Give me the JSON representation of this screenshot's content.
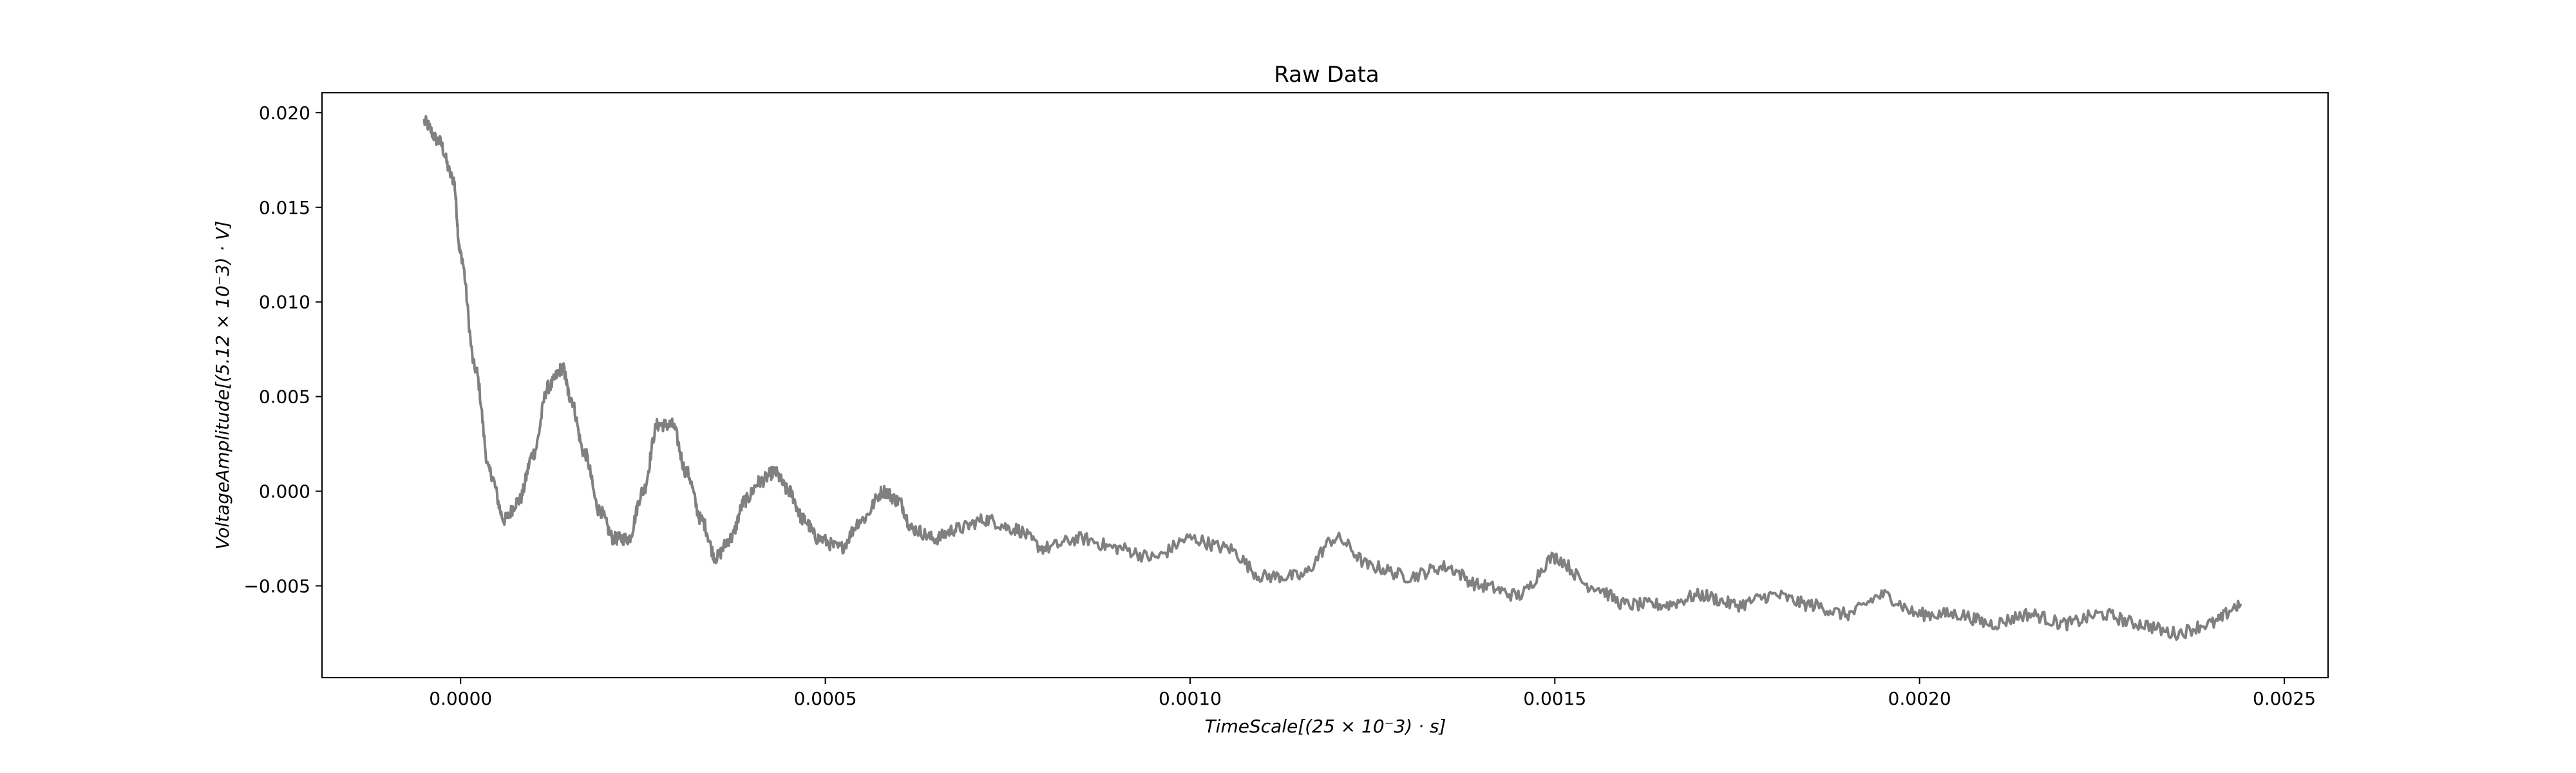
{
  "chart_data": {
    "type": "line",
    "title": "Raw Data",
    "xlabel": "TimeScale[(25 × 10⁻3) · s]",
    "ylabel": "VoltageAmplitude[(5.12 × 10⁻3) · V]",
    "xlim": [
      -0.00019,
      0.00256
    ],
    "ylim": [
      -0.00985,
      0.02105
    ],
    "xticks": [
      0.0,
      0.0005,
      0.001,
      0.0015,
      0.002,
      0.0025
    ],
    "xtick_labels": [
      "0.0000",
      "0.0005",
      "0.0010",
      "0.0015",
      "0.0020",
      "0.0025"
    ],
    "yticks": [
      -0.005,
      0.0,
      0.005,
      0.01,
      0.015,
      0.02
    ],
    "ytick_labels": [
      "−0.005",
      "0.000",
      "0.005",
      "0.010",
      "0.015",
      "0.020"
    ],
    "grid": false,
    "series": [
      {
        "color": "#808080",
        "x": [
          -5e-05,
          -3e-05,
          -1e-05,
          0.0,
          2e-05,
          4e-05,
          6e-05,
          8e-05,
          0.0001,
          0.00012,
          0.00014,
          0.00015,
          0.00017,
          0.00019,
          0.00021,
          0.00023,
          0.00025,
          0.00027,
          0.00029,
          0.00031,
          0.00033,
          0.00035,
          0.00037,
          0.00039,
          0.00041,
          0.00043,
          0.00045,
          0.00047,
          0.00049,
          0.00052,
          0.00055,
          0.00058,
          0.0006,
          0.00062,
          0.00065,
          0.00068,
          0.00072,
          0.00076,
          0.0008,
          0.00085,
          0.0009,
          0.00095,
          0.001,
          0.00105,
          0.0011,
          0.00115,
          0.0012,
          0.00125,
          0.0013,
          0.00135,
          0.0014,
          0.00145,
          0.0015,
          0.00155,
          0.0016,
          0.00165,
          0.0017,
          0.00175,
          0.0018,
          0.00185,
          0.0019,
          0.00195,
          0.002,
          0.00205,
          0.0021,
          0.00215,
          0.0022,
          0.00225,
          0.0023,
          0.00235,
          0.0024,
          0.00244
        ],
        "y": [
          0.0195,
          0.0185,
          0.0165,
          0.0125,
          0.0065,
          0.001,
          -0.0015,
          -0.0005,
          0.002,
          0.0055,
          0.0065,
          0.005,
          0.002,
          -0.001,
          -0.0025,
          -0.0025,
          0.0,
          0.0035,
          0.0035,
          0.001,
          -0.0015,
          -0.0035,
          -0.0025,
          -0.0005,
          0.0005,
          0.001,
          0.0,
          -0.0015,
          -0.0025,
          -0.003,
          -0.0015,
          0.0,
          -0.0005,
          -0.002,
          -0.0025,
          -0.002,
          -0.0015,
          -0.002,
          -0.003,
          -0.0025,
          -0.003,
          -0.0035,
          -0.0025,
          -0.003,
          -0.0045,
          -0.0045,
          -0.0025,
          -0.004,
          -0.0045,
          -0.004,
          -0.005,
          -0.0055,
          -0.0035,
          -0.005,
          -0.006,
          -0.006,
          -0.0055,
          -0.006,
          -0.0055,
          -0.006,
          -0.0065,
          -0.0055,
          -0.0065,
          -0.0065,
          -0.007,
          -0.0065,
          -0.007,
          -0.0065,
          -0.007,
          -0.0075,
          -0.007,
          -0.006
        ]
      }
    ]
  }
}
